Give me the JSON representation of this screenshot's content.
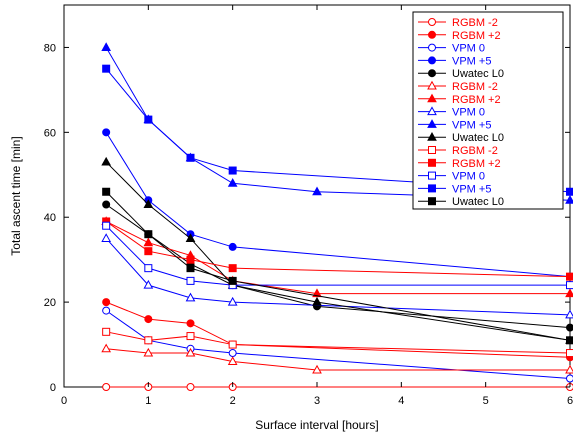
{
  "chart_data": {
    "type": "line",
    "xlabel": "Surface interval [hours]",
    "ylabel": "Total ascent time [min]",
    "xlim": [
      0,
      6
    ],
    "ylim": [
      0,
      90
    ],
    "xticks": [
      0,
      1,
      2,
      3,
      4,
      5,
      6
    ],
    "yticks": [
      0,
      20,
      40,
      60,
      80
    ],
    "xtick_labels": [
      "0",
      "1",
      "2",
      "3",
      "4",
      "5",
      "6"
    ],
    "ytick_labels": [
      "0",
      "20",
      "40",
      "60",
      "80"
    ],
    "grid": false,
    "legend_position": "top-right",
    "series": [
      {
        "name": "RGBM -2",
        "color": "#ff0000",
        "marker": "circle-open",
        "x": [
          0.5,
          1,
          1.5,
          2,
          6
        ],
        "y": [
          0,
          0,
          0,
          0,
          0
        ]
      },
      {
        "name": "RGBM +2",
        "color": "#ff0000",
        "marker": "circle-filled",
        "x": [
          0.5,
          1,
          1.5,
          2,
          6
        ],
        "y": [
          20,
          16,
          15,
          10,
          7
        ]
      },
      {
        "name": "VPM 0",
        "color": "#0000ff",
        "marker": "circle-open",
        "x": [
          0.5,
          1,
          1.5,
          2,
          6
        ],
        "y": [
          18,
          11,
          9,
          8,
          2
        ]
      },
      {
        "name": "VPM +5",
        "color": "#0000ff",
        "marker": "circle-filled",
        "x": [
          0.5,
          1,
          1.5,
          2,
          6
        ],
        "y": [
          60,
          44,
          36,
          33,
          26
        ]
      },
      {
        "name": "Uwatec L0",
        "color": "#000000",
        "marker": "circle-filled",
        "x": [
          0.5,
          1,
          1.5,
          2,
          3,
          6
        ],
        "y": [
          43,
          36,
          29,
          24,
          19,
          14
        ]
      },
      {
        "name": "RGBM -2",
        "color": "#ff0000",
        "marker": "triangle-open",
        "x": [
          0.5,
          1,
          1.5,
          2,
          3,
          6
        ],
        "y": [
          9,
          8,
          8,
          6,
          4,
          4
        ]
      },
      {
        "name": "RGBM +2",
        "color": "#ff0000",
        "marker": "triangle-filled",
        "x": [
          0.5,
          1,
          1.5,
          2,
          3,
          6
        ],
        "y": [
          39,
          34,
          31,
          25,
          22,
          22
        ]
      },
      {
        "name": "VPM 0",
        "color": "#0000ff",
        "marker": "triangle-open",
        "x": [
          0.5,
          1,
          1.5,
          2,
          6
        ],
        "y": [
          35,
          24,
          21,
          20,
          17
        ]
      },
      {
        "name": "VPM +5",
        "color": "#0000ff",
        "marker": "triangle-filled",
        "x": [
          0.5,
          1,
          1.5,
          2,
          3,
          6
        ],
        "y": [
          80,
          63,
          54,
          48,
          46,
          44
        ]
      },
      {
        "name": "Uwatec L0",
        "color": "#000000",
        "marker": "triangle-filled",
        "x": [
          0.5,
          1,
          1.5,
          2,
          3,
          6
        ],
        "y": [
          53,
          43,
          35,
          24,
          20,
          11
        ]
      },
      {
        "name": "RGBM -2",
        "color": "#ff0000",
        "marker": "square-open",
        "x": [
          0.5,
          1,
          1.5,
          2,
          6
        ],
        "y": [
          13,
          11,
          12,
          10,
          8
        ]
      },
      {
        "name": "RGBM +2",
        "color": "#ff0000",
        "marker": "square-filled",
        "x": [
          0.5,
          1,
          1.5,
          2,
          6
        ],
        "y": [
          39,
          32,
          30,
          28,
          26
        ]
      },
      {
        "name": "VPM 0",
        "color": "#0000ff",
        "marker": "square-open",
        "x": [
          0.5,
          1,
          1.5,
          2,
          6
        ],
        "y": [
          38,
          28,
          25,
          24,
          24
        ]
      },
      {
        "name": "VPM +5",
        "color": "#0000ff",
        "marker": "square-filled",
        "x": [
          0.5,
          1,
          1.5,
          2,
          6
        ],
        "y": [
          75,
          63,
          54,
          51,
          46
        ]
      },
      {
        "name": "Uwatec L0",
        "color": "#000000",
        "marker": "square-filled",
        "x": [
          0.5,
          1,
          1.5,
          2,
          6
        ],
        "y": [
          46,
          36,
          28,
          25,
          11
        ]
      }
    ]
  }
}
